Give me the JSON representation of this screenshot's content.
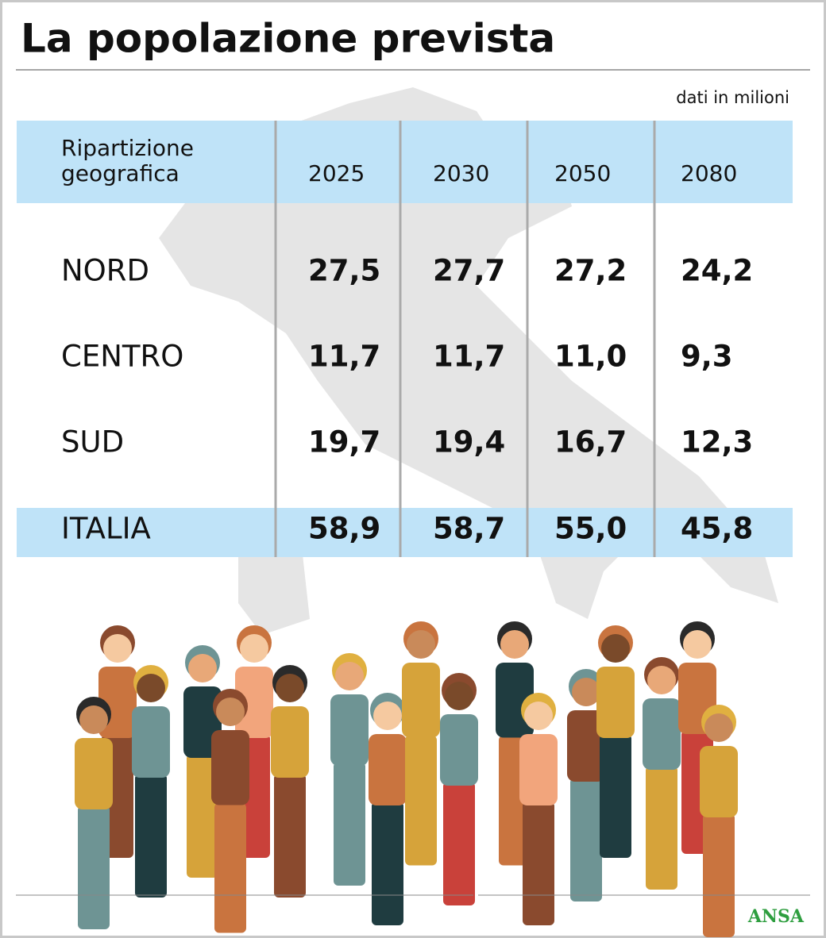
{
  "header": {
    "title": "La popolazione prevista",
    "note": "dati in milioni"
  },
  "table": {
    "columns": [
      "Ripartizione geografica",
      "2025",
      "2030",
      "2050",
      "2080"
    ],
    "rows": [
      [
        "NORD",
        "27,5",
        "27,7",
        "27,2",
        "24,2"
      ],
      [
        "CENTRO",
        "11,7",
        "11,7",
        "11,0",
        "9,3"
      ],
      [
        "SUD",
        "19,7",
        "19,4",
        "16,7",
        "12,3"
      ],
      [
        "ITALIA",
        "58,9",
        "58,7",
        "55,0",
        "45,8"
      ]
    ]
  },
  "footer": {
    "source": "ANSA"
  }
}
